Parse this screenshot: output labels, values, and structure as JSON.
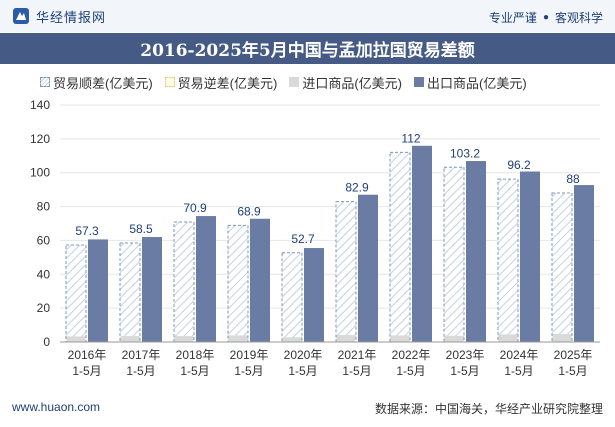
{
  "header": {
    "brand": "华经情报网",
    "slogan_left": "专业严谨",
    "slogan_sep": "●",
    "slogan_right": "客观科学"
  },
  "colors": {
    "export": "#6a7ba4",
    "import": "#d9d9d9",
    "surplus_stroke": "#7d98c0",
    "title_bg": "#465a86"
  },
  "chart_data": {
    "type": "bar",
    "title": "2016-2025年5月中国与孟加拉国贸易差额",
    "categories": [
      [
        "2016年",
        "1-5月"
      ],
      [
        "2017年",
        "1-5月"
      ],
      [
        "2018年",
        "1-5月"
      ],
      [
        "2019年",
        "1-5月"
      ],
      [
        "2020年",
        "1-5月"
      ],
      [
        "2021年",
        "1-5月"
      ],
      [
        "2022年",
        "1-5月"
      ],
      [
        "2023年",
        "1-5月"
      ],
      [
        "2024年",
        "1-5月"
      ],
      [
        "2025年",
        "1-5月"
      ]
    ],
    "series": [
      {
        "name": "贸易顺差(亿美元)",
        "values": [
          57.3,
          58.5,
          70.9,
          68.9,
          52.7,
          82.9,
          112,
          103.2,
          96.2,
          88
        ]
      },
      {
        "name": "贸易逆差(亿美元)",
        "values": [
          0,
          0,
          0,
          0,
          0,
          0,
          0,
          0,
          0,
          0
        ]
      },
      {
        "name": "进口商品(亿美元)",
        "values": [
          3.3,
          3.5,
          3.5,
          3.9,
          2.8,
          4.1,
          3.9,
          3.7,
          4.5,
          4.7
        ]
      },
      {
        "name": "出口商品(亿美元)",
        "values": [
          60.6,
          62.0,
          74.4,
          72.8,
          55.5,
          87.0,
          115.9,
          106.9,
          100.7,
          92.7
        ]
      }
    ],
    "data_labels": [
      "57.3",
      "58.5",
      "70.9",
      "68.9",
      "52.7",
      "82.9",
      "112",
      "103.2",
      "96.2",
      "88"
    ],
    "y_ticks": [
      "0",
      "20",
      "40",
      "60",
      "80",
      "100",
      "120",
      "140"
    ],
    "ylim": [
      0,
      140
    ],
    "grid": true,
    "legend_position": "top-left"
  },
  "footer": {
    "website": "www.huaon.com",
    "source": "数据来源：中国海关，华经产业研究院整理"
  }
}
